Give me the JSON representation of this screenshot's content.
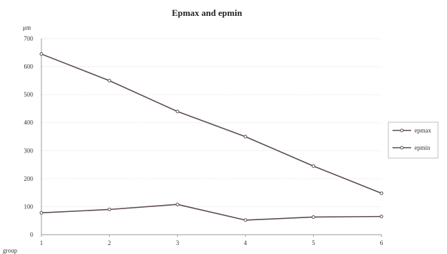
{
  "chart_data": {
    "type": "line",
    "title": "Epmax and epmin",
    "ylabel": "μm",
    "xlabel": "group",
    "categories": [
      "1",
      "2",
      "3",
      "4",
      "5",
      "6"
    ],
    "ylim": [
      0,
      700
    ],
    "yticks": [
      "0",
      "100",
      "200",
      "300",
      "400",
      "500",
      "600",
      "700"
    ],
    "grid": true,
    "legend_position": "right",
    "series": [
      {
        "name": "epmax",
        "values": [
          645,
          550,
          440,
          350,
          245,
          148
        ],
        "color": "#5a4a4a"
      },
      {
        "name": "epmin",
        "values": [
          78,
          90,
          108,
          52,
          63,
          65
        ],
        "color": "#5a4a4a"
      }
    ]
  }
}
